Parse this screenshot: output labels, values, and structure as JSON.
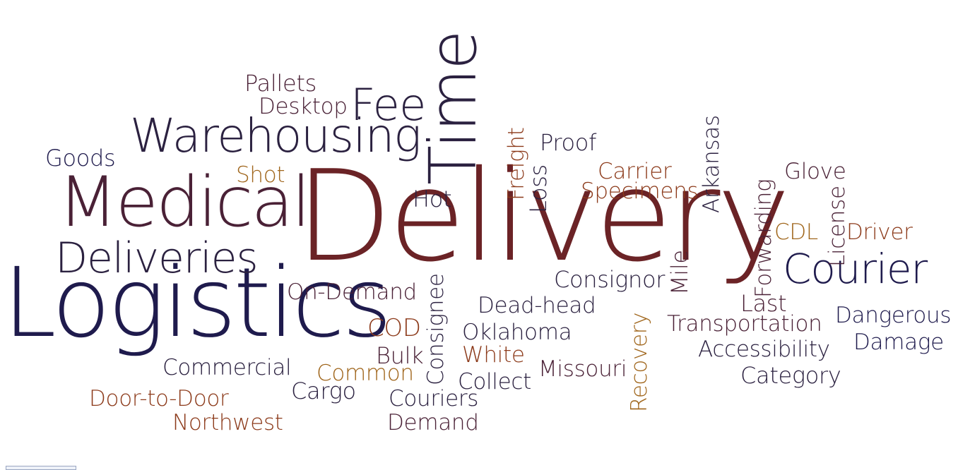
{
  "cloud": {
    "words": [
      {
        "key": "delivery",
        "text": "Delivery"
      },
      {
        "key": "logistics",
        "text": "Logistics"
      },
      {
        "key": "medical",
        "text": "Medical"
      },
      {
        "key": "time",
        "text": "Time"
      },
      {
        "key": "warehousing",
        "text": "Warehousing"
      },
      {
        "key": "deliveries",
        "text": "Deliveries"
      },
      {
        "key": "courier",
        "text": "Courier"
      },
      {
        "key": "fee",
        "text": "Fee"
      },
      {
        "key": "goods",
        "text": "Goods"
      },
      {
        "key": "pallets",
        "text": "Pallets"
      },
      {
        "key": "desktop",
        "text": "Desktop"
      },
      {
        "key": "shot",
        "text": "Shot"
      },
      {
        "key": "hot",
        "text": "Hot"
      },
      {
        "key": "freight",
        "text": "Freight"
      },
      {
        "key": "loss",
        "text": "Loss"
      },
      {
        "key": "proof",
        "text": "Proof"
      },
      {
        "key": "carrier",
        "text": "Carrier"
      },
      {
        "key": "specimens",
        "text": "Specimens"
      },
      {
        "key": "arkansas",
        "text": "Arkansas"
      },
      {
        "key": "forwarding",
        "text": "Forwarding"
      },
      {
        "key": "glove",
        "text": "Glove"
      },
      {
        "key": "license",
        "text": "License"
      },
      {
        "key": "cdl",
        "text": "CDL"
      },
      {
        "key": "driver",
        "text": "Driver"
      },
      {
        "key": "consignor",
        "text": "Consignor"
      },
      {
        "key": "mile",
        "text": "Mile"
      },
      {
        "key": "on_demand",
        "text": "On-Demand"
      },
      {
        "key": "consignee",
        "text": "Consignee"
      },
      {
        "key": "last",
        "text": "Last"
      },
      {
        "key": "dead_head",
        "text": "Dead-head"
      },
      {
        "key": "cod",
        "text": "COD"
      },
      {
        "key": "oklahoma",
        "text": "Oklahoma"
      },
      {
        "key": "recovery",
        "text": "Recovery"
      },
      {
        "key": "transportation",
        "text": "Transportation"
      },
      {
        "key": "dangerous",
        "text": "Dangerous"
      },
      {
        "key": "damage",
        "text": "Damage"
      },
      {
        "key": "accessibility",
        "text": "Accessibility"
      },
      {
        "key": "white",
        "text": "White"
      },
      {
        "key": "bulk",
        "text": "Bulk"
      },
      {
        "key": "missouri",
        "text": "Missouri"
      },
      {
        "key": "commercial",
        "text": "Commercial"
      },
      {
        "key": "common",
        "text": "Common"
      },
      {
        "key": "category",
        "text": "Category"
      },
      {
        "key": "collect",
        "text": "Collect"
      },
      {
        "key": "cargo",
        "text": "Cargo"
      },
      {
        "key": "door_to_door",
        "text": "Door-to-Door"
      },
      {
        "key": "couriers",
        "text": "Couriers"
      },
      {
        "key": "northwest",
        "text": "Northwest"
      },
      {
        "key": "demand",
        "text": "Demand"
      }
    ]
  }
}
